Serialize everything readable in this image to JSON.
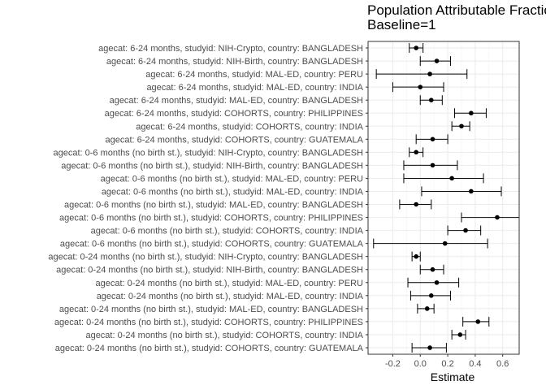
{
  "chart_data": {
    "type": "forest",
    "title_lines": [
      "Population Attributable Fraction",
      "Baseline=1"
    ],
    "xlabel": "Estimate",
    "xlim": [
      -0.38,
      0.72
    ],
    "x_ticks": [
      -0.2,
      0.0,
      0.2,
      0.4,
      0.6
    ],
    "x_tick_labels": [
      "-0.2",
      "0.0",
      "0.2",
      "0.4",
      "0.6"
    ],
    "grid": true,
    "rows": [
      {
        "label": "agecat: 6-24 months, studyid: NIH-Crypto, country: BANGLADESH",
        "estimate": -0.03,
        "lower": -0.08,
        "upper": 0.02
      },
      {
        "label": "agecat: 6-24 months, studyid: NIH-Birth, country: BANGLADESH",
        "estimate": 0.12,
        "lower": 0.0,
        "upper": 0.22
      },
      {
        "label": "agecat: 6-24 months, studyid: MAL-ED, country: PERU",
        "estimate": 0.07,
        "lower": -0.32,
        "upper": 0.34
      },
      {
        "label": "agecat: 6-24 months, studyid: MAL-ED, country: INDIA",
        "estimate": 0.0,
        "lower": -0.2,
        "upper": 0.17
      },
      {
        "label": "agecat: 6-24 months, studyid: MAL-ED, country: BANGLADESH",
        "estimate": 0.08,
        "lower": 0.0,
        "upper": 0.16
      },
      {
        "label": "agecat: 6-24 months, studyid: COHORTS, country: PHILIPPINES",
        "estimate": 0.37,
        "lower": 0.25,
        "upper": 0.48
      },
      {
        "label": "agecat: 6-24 months, studyid: COHORTS, country: INDIA",
        "estimate": 0.3,
        "lower": 0.23,
        "upper": 0.36
      },
      {
        "label": "agecat: 6-24 months, studyid: COHORTS, country: GUATEMALA",
        "estimate": 0.09,
        "lower": -0.03,
        "upper": 0.2
      },
      {
        "label": "agecat: 0-6 months (no birth st.), studyid: NIH-Crypto, country: BANGLADESH",
        "estimate": -0.03,
        "lower": -0.08,
        "upper": 0.02
      },
      {
        "label": "agecat: 0-6 months (no birth st.), studyid: NIH-Birth, country: BANGLADESH",
        "estimate": 0.09,
        "lower": -0.12,
        "upper": 0.27
      },
      {
        "label": "agecat: 0-6 months (no birth st.), studyid: MAL-ED, country: PERU",
        "estimate": 0.23,
        "lower": -0.12,
        "upper": 0.46
      },
      {
        "label": "agecat: 0-6 months (no birth st.), studyid: MAL-ED, country: INDIA",
        "estimate": 0.37,
        "lower": 0.01,
        "upper": 0.59
      },
      {
        "label": "agecat: 0-6 months (no birth st.), studyid: MAL-ED, country: BANGLADESH",
        "estimate": -0.03,
        "lower": -0.15,
        "upper": 0.08
      },
      {
        "label": "agecat: 0-6 months (no birth st.), studyid: COHORTS, country: PHILIPPINES",
        "estimate": 0.56,
        "lower": 0.3,
        "upper": 0.73
      },
      {
        "label": "agecat: 0-6 months (no birth st.), studyid: COHORTS, country: INDIA",
        "estimate": 0.33,
        "lower": 0.2,
        "upper": 0.44
      },
      {
        "label": "agecat: 0-6 months (no birth st.), studyid: COHORTS, country: GUATEMALA",
        "estimate": 0.18,
        "lower": -0.34,
        "upper": 0.49
      },
      {
        "label": "agecat: 0-24 months (no birth st.), studyid: NIH-Crypto, country: BANGLADESH",
        "estimate": -0.03,
        "lower": -0.06,
        "upper": 0.0
      },
      {
        "label": "agecat: 0-24 months (no birth st.), studyid: NIH-Birth, country: BANGLADESH",
        "estimate": 0.09,
        "lower": 0.0,
        "upper": 0.17
      },
      {
        "label": "agecat: 0-24 months (no birth st.), studyid: MAL-ED, country: PERU",
        "estimate": 0.12,
        "lower": -0.09,
        "upper": 0.28
      },
      {
        "label": "agecat: 0-24 months (no birth st.), studyid: MAL-ED, country: INDIA",
        "estimate": 0.08,
        "lower": -0.07,
        "upper": 0.22
      },
      {
        "label": "agecat: 0-24 months (no birth st.), studyid: MAL-ED, country: BANGLADESH",
        "estimate": 0.05,
        "lower": -0.02,
        "upper": 0.1
      },
      {
        "label": "agecat: 0-24 months (no birth st.), studyid: COHORTS, country: PHILIPPINES",
        "estimate": 0.42,
        "lower": 0.31,
        "upper": 0.5
      },
      {
        "label": "agecat: 0-24 months (no birth st.), studyid: COHORTS, country: INDIA",
        "estimate": 0.29,
        "lower": 0.23,
        "upper": 0.33
      },
      {
        "label": "agecat: 0-24 months (no birth st.), studyid: COHORTS, country: GUATEMALA",
        "estimate": 0.07,
        "lower": -0.06,
        "upper": 0.19
      }
    ]
  }
}
